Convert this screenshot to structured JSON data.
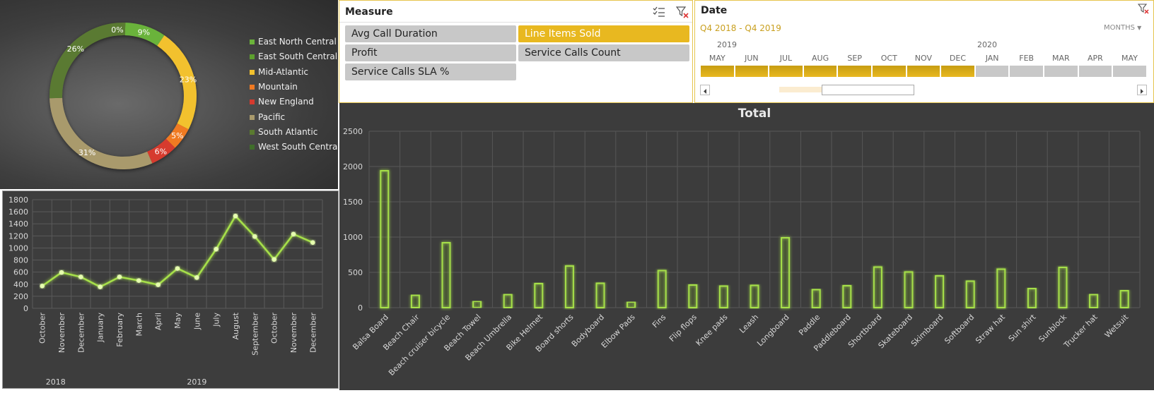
{
  "colors": {
    "accent": "#e8b820",
    "glow": "#a6e04a",
    "gridline": "#5a5a5a",
    "axis_text": "#d8d8d8"
  },
  "measure_slicer": {
    "title": "Measure",
    "items": [
      {
        "label": "Avg Call Duration",
        "selected": false
      },
      {
        "label": "Line Items Sold",
        "selected": true
      },
      {
        "label": "Profit",
        "selected": false
      },
      {
        "label": "Service Calls Count",
        "selected": false
      },
      {
        "label": "Service Calls SLA %",
        "selected": false
      }
    ]
  },
  "date_slicer": {
    "title": "Date",
    "range_label": "Q4 2018 - Q4 2019",
    "level_label": "MONTHS",
    "years": [
      "2019",
      "2020"
    ],
    "months": [
      "MAY",
      "JUN",
      "JUL",
      "AUG",
      "SEP",
      "OCT",
      "NOV",
      "DEC",
      "JAN",
      "FEB",
      "MAR",
      "APR",
      "MAY"
    ],
    "selected_count": 8
  },
  "chart_data": [
    {
      "type": "pie",
      "title": "",
      "categories": [
        "East North Central",
        "East South Central",
        "Mid-Atlantic",
        "Mountain",
        "New England",
        "Pacific",
        "South Atlantic",
        "West South Central"
      ],
      "values": [
        9,
        0,
        23,
        5,
        6,
        31,
        26,
        0
      ],
      "labels": [
        "9%",
        "0%",
        "23%",
        "5%",
        "6%",
        "31%",
        "26%",
        ""
      ],
      "colors": [
        "#6bb33a",
        "#5da02e",
        "#f2c12e",
        "#f07a22",
        "#d63a2e",
        "#a99a6c",
        "#5a7a30",
        "#3f6e2a"
      ],
      "legend_position": "right"
    },
    {
      "type": "line",
      "categories": [
        "October",
        "November",
        "December",
        "January",
        "February",
        "March",
        "April",
        "May",
        "June",
        "July",
        "August",
        "September",
        "October",
        "November",
        "December"
      ],
      "year_labels": [
        "2018",
        "2019"
      ],
      "values": [
        370,
        595,
        520,
        355,
        520,
        460,
        390,
        660,
        510,
        980,
        1530,
        1190,
        810,
        1230,
        1090
      ],
      "ylim": [
        0,
        1800
      ],
      "yticks": [
        "0",
        "200",
        "400",
        "600",
        "800",
        "1000",
        "1200",
        "1400",
        "1600",
        "1800"
      ],
      "grid": true
    },
    {
      "type": "bar",
      "title": "Total",
      "categories": [
        "Balsa Board",
        "Beach Chair",
        "Beach cruiser bicycle",
        "Beach Towel",
        "Beach Umbrella",
        "Bike Helmet",
        "Board shorts",
        "Bodyboard",
        "Elbow Pads",
        "Fins",
        "Flip flops",
        "Knee pads",
        "Leash",
        "Longboard",
        "Paddle",
        "Paddleboard",
        "Shortboard",
        "Skateboard",
        "Skimboard",
        "Softboard",
        "Straw hat",
        "Sun shirt",
        "Sunblock",
        "Trucker hat",
        "Wetsuit"
      ],
      "values": [
        1940,
        175,
        920,
        90,
        185,
        340,
        590,
        345,
        80,
        525,
        320,
        305,
        315,
        990,
        255,
        310,
        575,
        505,
        450,
        375,
        545,
        270,
        570,
        185,
        240
      ],
      "ylim": [
        0,
        2500
      ],
      "yticks": [
        "0",
        "500",
        "1000",
        "1500",
        "2000",
        "2500"
      ],
      "grid": true
    }
  ]
}
